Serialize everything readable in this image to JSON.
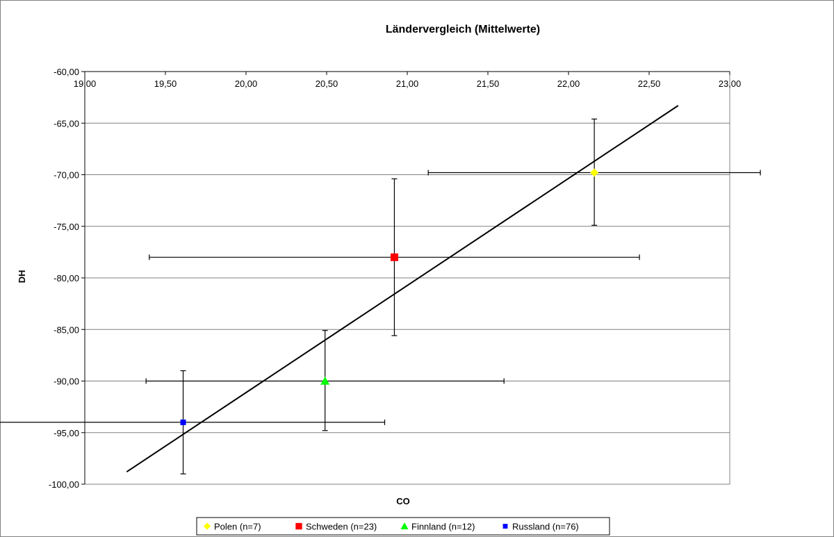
{
  "chart_data": {
    "type": "scatter",
    "title": "Ländervergleich (Mittelwerte)",
    "xlabel": "CO",
    "ylabel": "DH",
    "xlim": [
      19.0,
      23.0
    ],
    "ylim": [
      -100.0,
      -60.0
    ],
    "x_ticks": [
      "19,00",
      "19,50",
      "20,00",
      "20,50",
      "21,00",
      "21,50",
      "22,00",
      "22,50",
      "23,00"
    ],
    "x_tick_values": [
      19.0,
      19.5,
      20.0,
      20.5,
      21.0,
      21.5,
      22.0,
      22.5,
      23.0
    ],
    "y_ticks": [
      "-60,00",
      "-65,00",
      "-70,00",
      "-75,00",
      "-80,00",
      "-85,00",
      "-90,00",
      "-95,00",
      "-100,00"
    ],
    "y_tick_values": [
      -60,
      -65,
      -70,
      -75,
      -80,
      -85,
      -90,
      -95,
      -100
    ],
    "x_axis_position": "top",
    "grid": "horizontal",
    "legend_position": "bottom",
    "series": [
      {
        "name": "Polen (n=7)",
        "color": "#ffff00",
        "marker": "diamond",
        "x": 22.16,
        "y": -69.8,
        "x_err": 1.03,
        "y_err": [
          5.2,
          5.1
        ]
      },
      {
        "name": "Schweden (n=23)",
        "color": "#ff0000",
        "marker": "square",
        "x": 20.92,
        "y": -78.0,
        "x_err": 1.52,
        "y_err": [
          7.6,
          7.6
        ]
      },
      {
        "name": "Finnland (n=12)",
        "color": "#00ff00",
        "marker": "triangle",
        "x": 20.49,
        "y": -90.0,
        "x_err": 1.11,
        "y_err": [
          4.9,
          4.8
        ]
      },
      {
        "name": "Russland (n=76)",
        "color": "#0000ff",
        "marker": "square-small",
        "x": 19.61,
        "y": -94.0,
        "x_err": 1.25,
        "y_err": [
          5.0,
          5.0
        ]
      }
    ],
    "trendline": {
      "x": [
        19.26,
        22.68
      ],
      "y": [
        -98.8,
        -63.3
      ]
    }
  }
}
